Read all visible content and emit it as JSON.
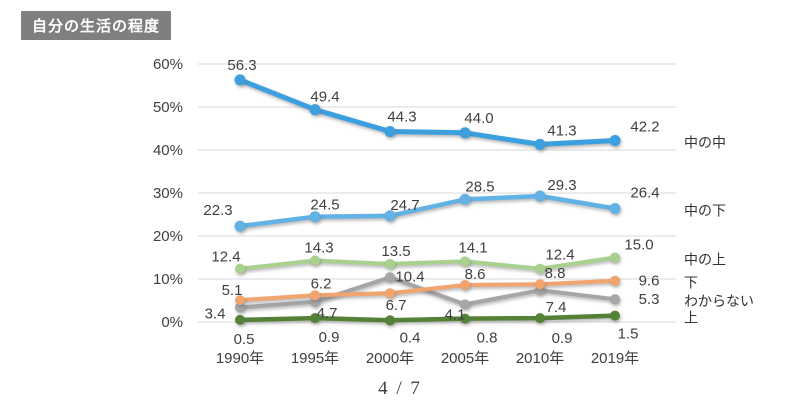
{
  "title": "自分の生活の程度",
  "page_indicator": "4 / 7",
  "colors": {
    "title_badge_bg": "#7f7f7f",
    "title_badge_fg": "#ffffff",
    "gridline": "#d9d9d9",
    "data_label_text": "#404040"
  },
  "chart_data": {
    "type": "line",
    "title": "自分の生活の程度",
    "categories": [
      "1990年",
      "1995年",
      "2000年",
      "2005年",
      "2010年",
      "2019年"
    ],
    "ylim": [
      0,
      60
    ],
    "ytick_step": 10,
    "ytick_suffix": "%",
    "grid": true,
    "legend_position": "right-of-line-ends",
    "series": [
      {
        "name": "中の中",
        "color": "#3c9fe0",
        "values": [
          56.3,
          49.4,
          44.3,
          44.0,
          41.3,
          42.2
        ],
        "labels": [
          "56.3",
          "49.4",
          "44.3",
          "44.0",
          "41.3",
          "42.2"
        ],
        "label_offsets": [
          [
            2,
            -10
          ],
          [
            10,
            -8
          ],
          [
            12,
            -10
          ],
          [
            14,
            -10
          ],
          [
            22,
            -9
          ],
          [
            30,
            -9
          ]
        ]
      },
      {
        "name": "中の下",
        "color": "#63b2e6",
        "values": [
          22.3,
          24.5,
          24.7,
          28.5,
          29.3,
          26.4
        ],
        "labels": [
          "22.3",
          "24.5",
          "24.7",
          "28.5",
          "29.3",
          "26.4"
        ],
        "label_offsets": [
          [
            -22,
            -11
          ],
          [
            10,
            -7
          ],
          [
            15,
            -6
          ],
          [
            15,
            -8
          ],
          [
            22,
            -6
          ],
          [
            30,
            -11
          ]
        ]
      },
      {
        "name": "中の上",
        "color": "#a9d18e",
        "values": [
          12.4,
          14.3,
          13.5,
          14.1,
          12.4,
          15.0
        ],
        "labels": [
          "12.4",
          "14.3",
          "13.5",
          "14.1",
          "12.4",
          "15.0"
        ],
        "label_offsets": [
          [
            -14,
            -7
          ],
          [
            4,
            -8
          ],
          [
            6,
            -8
          ],
          [
            8,
            -9
          ],
          [
            20,
            -9
          ],
          [
            24,
            -8
          ]
        ]
      },
      {
        "name": "下",
        "color": "#f2a46f",
        "values": [
          5.1,
          6.2,
          6.7,
          8.6,
          8.8,
          9.6
        ],
        "labels": [
          "5.1",
          "6.2",
          "6.7",
          "8.6",
          "8.8",
          "9.6"
        ],
        "label_offsets": [
          [
            -8,
            -5
          ],
          [
            6,
            -7
          ],
          [
            6,
            17
          ],
          [
            10,
            -6
          ],
          [
            15,
            -6
          ],
          [
            34,
            5
          ]
        ]
      },
      {
        "name": "わからない",
        "color": "#a6a6a6",
        "values": [
          3.4,
          4.7,
          10.4,
          4.1,
          7.4,
          5.3
        ],
        "labels": [
          "3.4",
          "4.7",
          "10.4",
          "4.1",
          "7.4",
          "5.3"
        ],
        "label_offsets": [
          [
            -25,
            11
          ],
          [
            12,
            16
          ],
          [
            20,
            4
          ],
          [
            -10,
            15
          ],
          [
            16,
            22
          ],
          [
            34,
            5
          ]
        ]
      },
      {
        "name": "上",
        "color": "#538135",
        "values": [
          0.5,
          0.9,
          0.4,
          0.8,
          0.9,
          1.5
        ],
        "labels": [
          "0.5",
          "0.9",
          "0.4",
          "0.8",
          "0.9",
          "1.5"
        ],
        "label_offsets": [
          [
            4,
            24
          ],
          [
            14,
            24
          ],
          [
            20,
            22
          ],
          [
            22,
            24
          ],
          [
            22,
            25
          ],
          [
            13,
            23
          ]
        ]
      }
    ]
  }
}
